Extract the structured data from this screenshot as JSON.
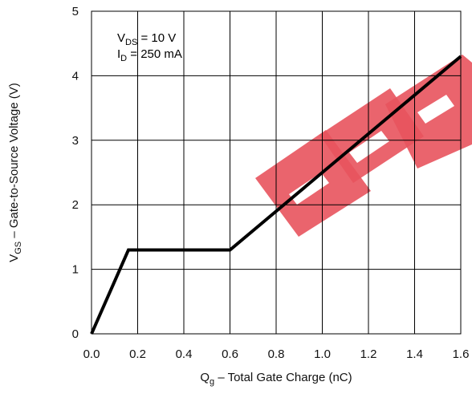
{
  "chart_data": {
    "type": "line",
    "title": "",
    "xlabel": {
      "main": "Q",
      "sub": "g",
      "rest": " –  Total Gate Charge (nC)"
    },
    "ylabel": {
      "main": "V",
      "sub": "GS",
      "rest": " –  Gate-to-Source Voltage (V)"
    },
    "xlim": [
      0,
      1.6
    ],
    "ylim": [
      0,
      5
    ],
    "x_ticks": [
      "0.0",
      "0.2",
      "0.4",
      "0.6",
      "0.8",
      "1.0",
      "1.2",
      "1.4",
      "1.6"
    ],
    "y_ticks": [
      "0",
      "1",
      "2",
      "3",
      "4",
      "5"
    ],
    "grid": true,
    "annotations": [
      {
        "main": "V",
        "sub": "DS",
        "rest": " = 10 V"
      },
      {
        "main": "I",
        "sub": "D",
        "rest": " = 250 mA"
      }
    ],
    "series": [
      {
        "x": [
          0.0,
          0.16,
          0.6,
          0.8,
          1.6
        ],
        "y": [
          0.0,
          1.3,
          1.3,
          1.9,
          4.3
        ]
      }
    ],
    "watermark_text": "EEP",
    "watermark_color": "#e8535d",
    "line_color": "#000000"
  }
}
